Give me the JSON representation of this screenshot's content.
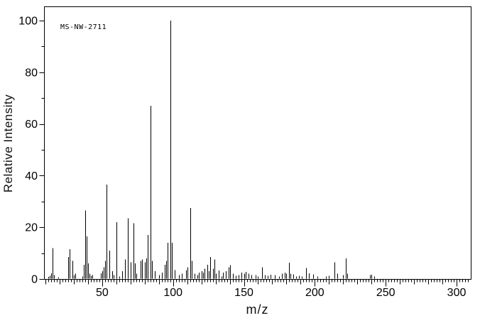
{
  "colors": {
    "background": "#ffffff",
    "foreground": "#000000",
    "text": "#111111"
  },
  "chart_data": {
    "type": "bar",
    "subtype": "mass-spectrum-stick-plot",
    "annotation": "MS-NW-2711",
    "xlabel": "m/z",
    "ylabel": "Relative Intensity",
    "xlim": [
      9,
      310
    ],
    "ylim": [
      0,
      105.5
    ],
    "x_tick_labels": [
      50,
      100,
      150,
      200,
      250,
      300
    ],
    "y_tick_labels": [
      0,
      20,
      40,
      60,
      80,
      100
    ],
    "x_minor_step": 2,
    "x_mid_step": 10,
    "x_major_step": 50,
    "y_minor_step": 10,
    "y_major_step": 20,
    "grid": false,
    "legend": false,
    "peaks": [
      [
        12,
        0.8
      ],
      [
        13,
        1.2
      ],
      [
        14,
        2.2
      ],
      [
        15,
        12
      ],
      [
        16,
        1.5
      ],
      [
        19,
        0.7
      ],
      [
        26,
        8.5
      ],
      [
        27,
        11.5
      ],
      [
        29,
        7
      ],
      [
        30,
        1.5
      ],
      [
        31,
        2
      ],
      [
        36,
        1
      ],
      [
        37,
        5.5
      ],
      [
        38,
        26.5
      ],
      [
        39,
        16.5
      ],
      [
        40,
        6
      ],
      [
        41,
        2
      ],
      [
        42,
        1.2
      ],
      [
        43,
        1.5
      ],
      [
        49,
        2.2
      ],
      [
        50,
        3
      ],
      [
        51,
        4.5
      ],
      [
        52,
        7
      ],
      [
        53,
        36.5
      ],
      [
        55,
        11
      ],
      [
        57,
        3
      ],
      [
        58,
        1.5
      ],
      [
        60,
        22
      ],
      [
        62,
        1
      ],
      [
        64,
        3
      ],
      [
        66,
        7.5
      ],
      [
        68,
        23.5
      ],
      [
        70,
        6.5
      ],
      [
        72,
        21.5
      ],
      [
        73,
        6
      ],
      [
        74,
        2
      ],
      [
        77,
        7
      ],
      [
        78,
        7.5
      ],
      [
        80,
        6.5
      ],
      [
        81,
        8
      ],
      [
        82,
        17
      ],
      [
        84,
        67
      ],
      [
        85,
        7
      ],
      [
        87,
        3
      ],
      [
        90,
        1.5
      ],
      [
        92,
        2.5
      ],
      [
        94,
        5.5
      ],
      [
        95,
        7
      ],
      [
        96,
        14
      ],
      [
        98,
        100
      ],
      [
        99,
        14
      ],
      [
        101,
        3.5
      ],
      [
        104,
        1.5
      ],
      [
        106,
        2
      ],
      [
        109,
        3.5
      ],
      [
        110,
        4.5
      ],
      [
        112,
        27.5
      ],
      [
        113,
        7
      ],
      [
        115,
        2
      ],
      [
        117,
        1.5
      ],
      [
        118,
        2.5
      ],
      [
        120,
        3
      ],
      [
        121,
        2.5
      ],
      [
        122,
        4
      ],
      [
        124,
        5.5
      ],
      [
        125,
        3
      ],
      [
        126,
        8.5
      ],
      [
        128,
        4
      ],
      [
        129,
        7.5
      ],
      [
        130,
        2
      ],
      [
        132,
        3.3
      ],
      [
        134,
        1
      ],
      [
        135,
        2.5
      ],
      [
        137,
        3
      ],
      [
        139,
        4.5
      ],
      [
        140,
        5.3
      ],
      [
        142,
        2
      ],
      [
        144,
        1.2
      ],
      [
        146,
        1.5
      ],
      [
        148,
        2.5
      ],
      [
        150,
        2
      ],
      [
        151,
        2.8
      ],
      [
        153,
        2
      ],
      [
        155,
        1.5
      ],
      [
        158,
        1.5
      ],
      [
        160,
        1
      ],
      [
        163,
        4.5
      ],
      [
        165,
        1.5
      ],
      [
        167,
        1.3
      ],
      [
        169,
        1.7
      ],
      [
        172,
        1.5
      ],
      [
        175,
        1
      ],
      [
        177,
        2
      ],
      [
        179,
        2.5
      ],
      [
        180,
        2
      ],
      [
        182,
        6.3
      ],
      [
        183,
        2
      ],
      [
        185,
        1.8
      ],
      [
        187,
        1
      ],
      [
        189,
        1.2
      ],
      [
        191,
        1
      ],
      [
        194,
        4.2
      ],
      [
        196,
        2.2
      ],
      [
        199,
        1.8
      ],
      [
        202,
        1
      ],
      [
        208,
        1
      ],
      [
        210,
        1.3
      ],
      [
        214,
        6.5
      ],
      [
        216,
        2
      ],
      [
        220,
        1.5
      ],
      [
        222,
        8
      ],
      [
        223,
        2
      ],
      [
        239,
        1.5
      ],
      [
        240,
        1.7
      ],
      [
        242,
        1
      ]
    ]
  }
}
